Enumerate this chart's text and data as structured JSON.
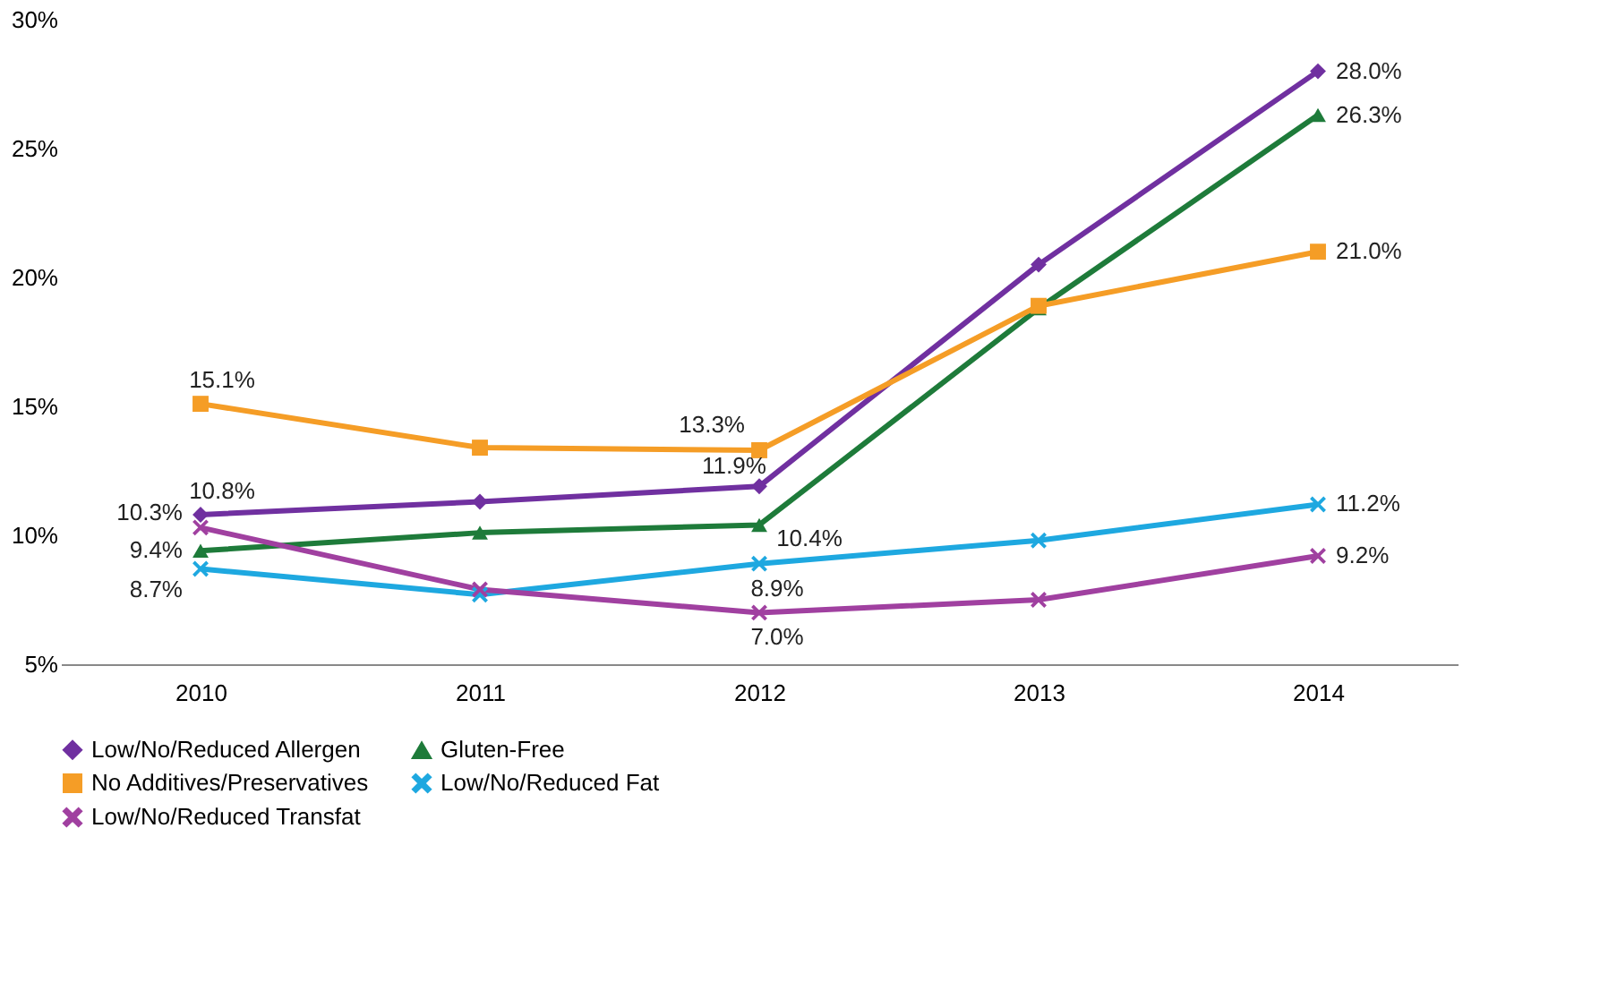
{
  "chart_data": {
    "type": "line",
    "categories": [
      "2010",
      "2011",
      "2012",
      "2013",
      "2014"
    ],
    "series": [
      {
        "name": "Low/No/Reduced Allergen",
        "color": "#7030a0",
        "marker": "diamond",
        "values": [
          10.8,
          11.3,
          11.9,
          20.5,
          28.0
        ],
        "value_labels": [
          "10.8%",
          null,
          "11.9%",
          null,
          "28.0%"
        ]
      },
      {
        "name": "Gluten-Free",
        "color": "#1e7b3a",
        "marker": "triangle",
        "values": [
          9.4,
          10.1,
          10.4,
          18.8,
          26.3
        ],
        "value_labels": [
          "9.4%",
          null,
          "10.4%",
          null,
          "26.3%"
        ]
      },
      {
        "name": "No Additives/Preservatives",
        "color": "#f59d26",
        "marker": "square",
        "values": [
          15.1,
          13.4,
          13.3,
          18.9,
          21.0
        ],
        "value_labels": [
          "15.1%",
          null,
          "13.3%",
          null,
          "21.0%"
        ]
      },
      {
        "name": "Low/No/Reduced Fat",
        "color": "#1ea8e0",
        "marker": "cross",
        "values": [
          8.7,
          7.7,
          8.9,
          9.8,
          11.2
        ],
        "value_labels": [
          "8.7%",
          null,
          "8.9%",
          null,
          "11.2%"
        ]
      },
      {
        "name": "Low/No/Reduced Transfat",
        "color": "#a040a0",
        "marker": "cross",
        "values": [
          10.3,
          7.9,
          7.0,
          7.5,
          9.2
        ],
        "value_labels": [
          "10.3%",
          null,
          "7.0%",
          null,
          "9.2%"
        ]
      }
    ],
    "ylim": [
      5,
      30
    ],
    "yticks": [
      {
        "value": 5,
        "label": "5%"
      },
      {
        "value": 10,
        "label": "10%"
      },
      {
        "value": 15,
        "label": "15%"
      },
      {
        "value": 20,
        "label": "20%"
      },
      {
        "value": 25,
        "label": "25%"
      },
      {
        "value": 30,
        "label": "30%"
      }
    ],
    "grid": false,
    "legend": "bottom",
    "line_style": "solid"
  }
}
